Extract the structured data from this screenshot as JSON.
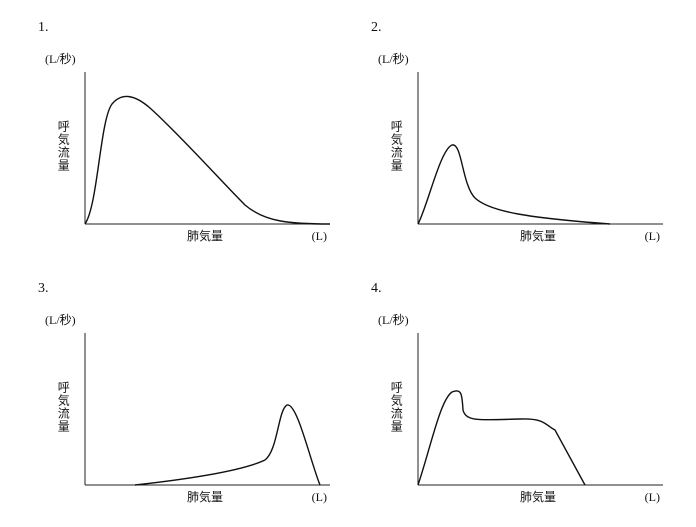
{
  "panels": [
    {
      "number": "1.",
      "y_unit": "(L/秒)",
      "y_label": "呼気流量",
      "x_label": "肺気量",
      "x_unit": "(L)"
    },
    {
      "number": "2.",
      "y_unit": "(L/秒)",
      "y_label": "呼気流量",
      "x_label": "肺気量",
      "x_unit": "(L)"
    },
    {
      "number": "3.",
      "y_unit": "(L/秒)",
      "y_label": "呼気流量",
      "x_label": "肺気量",
      "x_unit": "(L)"
    },
    {
      "number": "4.",
      "y_unit": "(L/秒)",
      "y_label": "呼気流量",
      "x_label": "肺気量",
      "x_unit": "(L)"
    }
  ]
}
